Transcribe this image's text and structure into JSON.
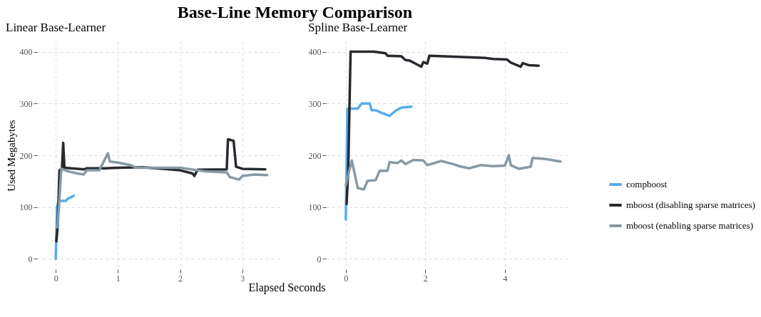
{
  "chart_data": [
    {
      "type": "line",
      "title": "Base-Line Memory Comparison",
      "subtitle": "Linear Base-Learner",
      "xlabel": "Elapsed Seconds",
      "ylabel": "Used Megabytes",
      "xlim": [
        -0.3,
        3.6
      ],
      "ylim": [
        -20,
        420
      ],
      "xticks": [
        0,
        1,
        2,
        3
      ],
      "yticks": [
        0,
        100,
        200,
        300,
        400
      ],
      "grid": true,
      "legend": "right",
      "line_style": "solid",
      "series": [
        {
          "name": "compboost",
          "color": "#55acee",
          "x": [
            0,
            0.02,
            0.05,
            0.16,
            0.2,
            0.23,
            0.29
          ],
          "values": [
            0,
            100,
            112,
            112,
            117,
            118,
            122
          ]
        },
        {
          "name": "mboost (disabling sparse matrices)",
          "color": "#262a2e",
          "x": [
            0.01,
            0.03,
            0.06,
            0.1,
            0.12,
            0.14,
            0.46,
            0.5,
            0.8,
            1.0,
            1.4,
            2.0,
            2.2,
            2.23,
            2.28,
            2.75,
            2.77,
            2.86,
            2.9,
            3.0,
            3.37
          ],
          "values": [
            34,
            61,
            171,
            174,
            224,
            176,
            173,
            175,
            175,
            176,
            177,
            171,
            165,
            160,
            172,
            173,
            231,
            228,
            178,
            174,
            173
          ]
        },
        {
          "name": "mboost (enabling sparse matrices)",
          "color": "#8899a4",
          "x": [
            0.03,
            0.09,
            0.2,
            0.35,
            0.45,
            0.5,
            0.7,
            0.84,
            0.87,
            1.0,
            1.2,
            1.3,
            2.0,
            2.4,
            2.75,
            2.8,
            2.95,
            3.0,
            3.2,
            3.4
          ],
          "values": [
            61,
            174,
            169,
            165,
            163,
            171,
            171,
            204,
            188,
            186,
            181,
            176,
            176,
            169,
            167,
            158,
            153,
            160,
            163,
            162
          ]
        }
      ]
    },
    {
      "type": "line",
      "subtitle": "Spline Base-Learner",
      "xlim": [
        -0.5,
        5.6
      ],
      "ylim": [
        -20,
        420
      ],
      "xticks": [
        0,
        2,
        4
      ],
      "yticks": [
        0,
        100,
        200,
        300,
        400
      ],
      "grid": true,
      "legend": "right",
      "line_style": "solid",
      "series": [
        {
          "name": "compboost",
          "color": "#55acee",
          "x": [
            0,
            0.04,
            0.3,
            0.4,
            0.6,
            0.65,
            0.75,
            0.9,
            1.1,
            1.25,
            1.4,
            1.65
          ],
          "values": [
            76,
            290,
            290,
            300,
            300,
            287,
            287,
            282,
            276,
            286,
            292,
            294
          ]
        },
        {
          "name": "mboost (disabling sparse matrices)",
          "color": "#262a2e",
          "x": [
            0.02,
            0.06,
            0.12,
            0.7,
            1.0,
            1.05,
            1.4,
            1.5,
            1.6,
            1.8,
            1.9,
            1.95,
            2.05,
            2.1,
            3.5,
            3.7,
            4.05,
            4.15,
            4.4,
            4.45,
            4.6,
            4.85
          ],
          "values": [
            106,
            170,
            400,
            400,
            397,
            392,
            391,
            384,
            383,
            375,
            371,
            380,
            377,
            392,
            388,
            386,
            385,
            379,
            371,
            378,
            374,
            373
          ]
        },
        {
          "name": "mboost (enabling sparse matrices)",
          "color": "#8899a4",
          "x": [
            0,
            0.06,
            0.15,
            0.3,
            0.45,
            0.55,
            0.75,
            0.85,
            1.05,
            1.1,
            1.3,
            1.4,
            1.5,
            1.7,
            1.95,
            2.05,
            2.4,
            2.7,
            2.85,
            3.1,
            3.4,
            3.7,
            4.0,
            4.1,
            4.15,
            4.35,
            4.65,
            4.7,
            5.0,
            5.4
          ],
          "values": [
            142,
            162,
            190,
            137,
            134,
            151,
            152,
            170,
            170,
            187,
            185,
            190,
            183,
            191,
            190,
            181,
            189,
            183,
            179,
            175,
            181,
            179,
            180,
            200,
            181,
            174,
            178,
            195,
            193,
            188
          ]
        }
      ]
    }
  ]
}
